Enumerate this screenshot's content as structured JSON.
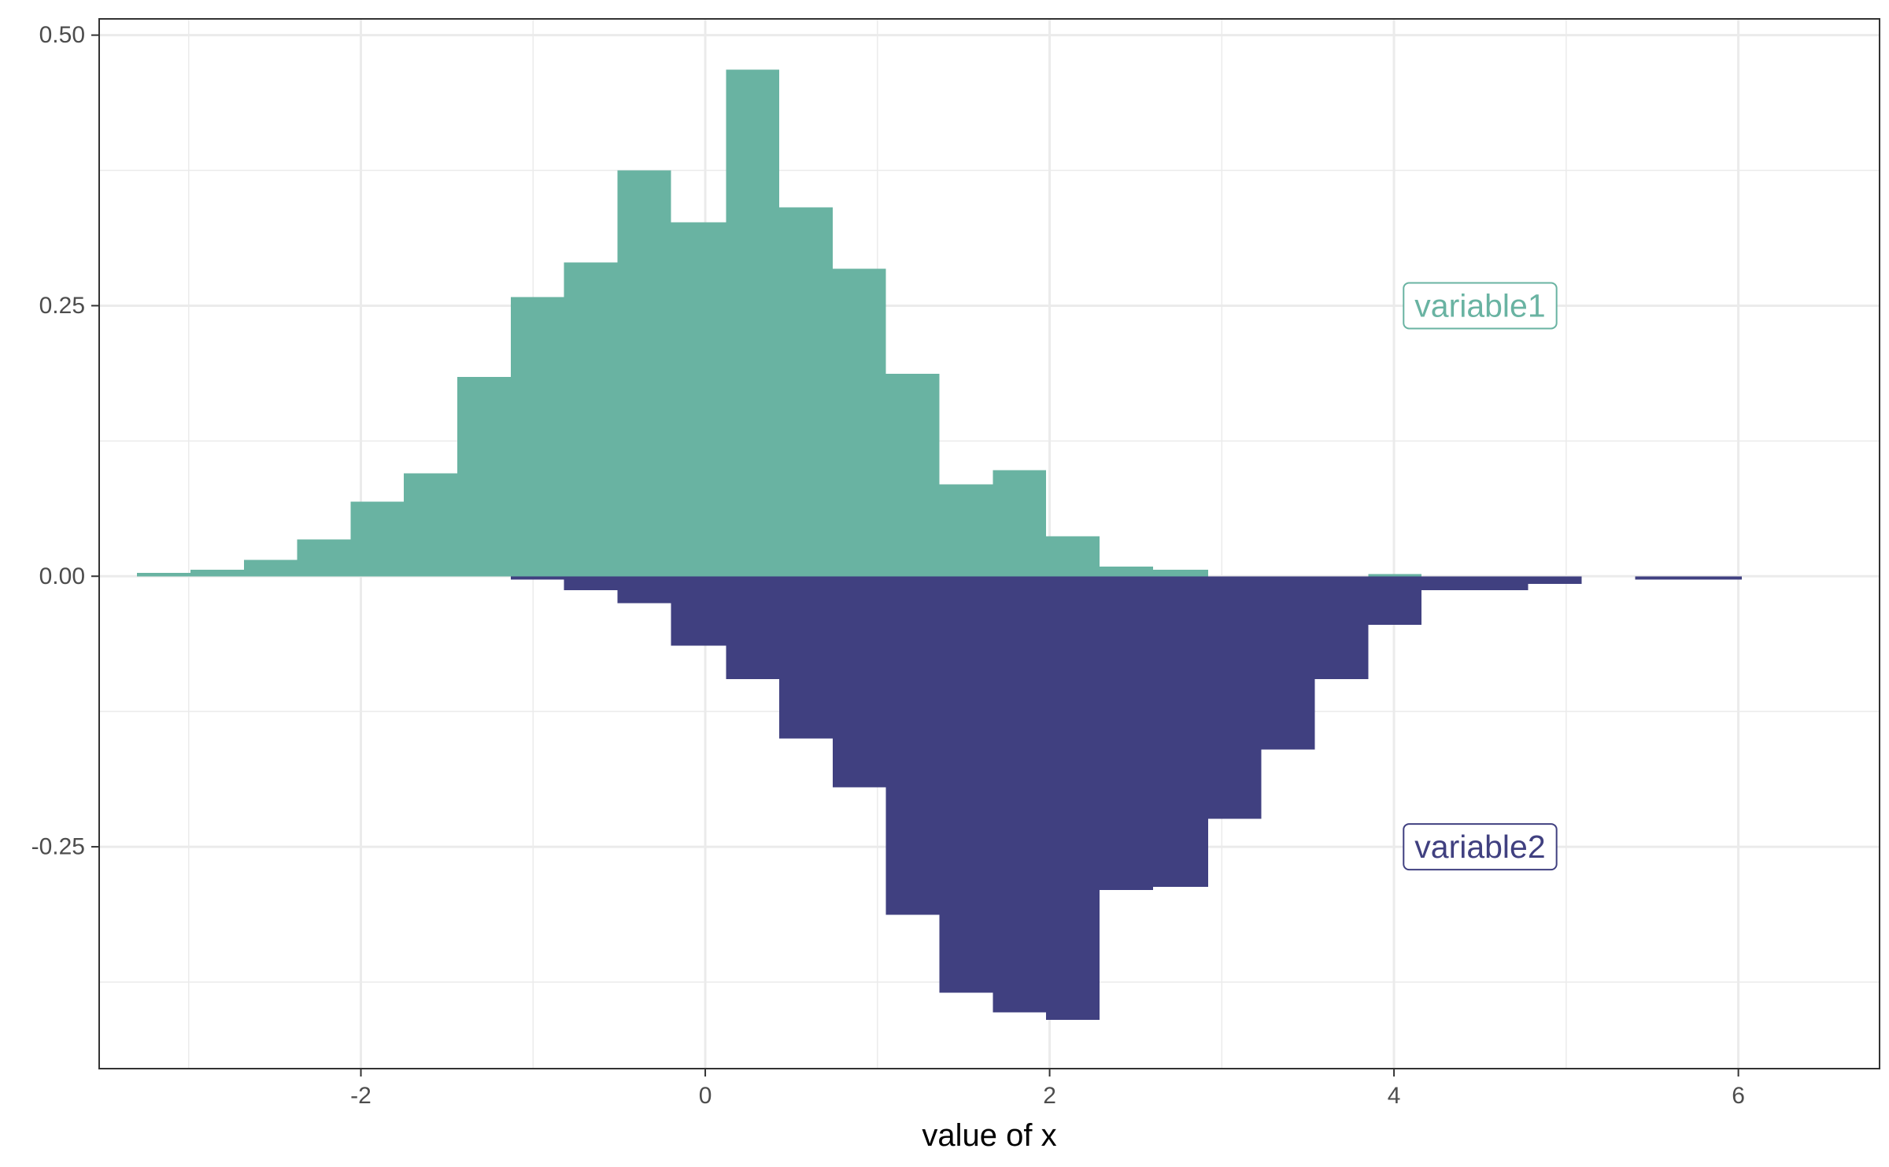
{
  "chart_data": {
    "type": "bar",
    "xlabel": "value of x",
    "ylabel": "",
    "xlim": [
      -3.52,
      6.82
    ],
    "ylim": [
      -0.455,
      0.515
    ],
    "x_ticks": [
      -2,
      0,
      2,
      4,
      6
    ],
    "x_tick_labels": [
      "-2",
      "0",
      "2",
      "4",
      "6"
    ],
    "y_ticks": [
      -0.25,
      0,
      0.25,
      0.5
    ],
    "y_tick_labels": [
      "-0.25",
      "0.00",
      "0.25",
      "0.50"
    ],
    "grid": true,
    "series": [
      {
        "color": "#69b3a2",
        "bins": [
          [
            -3.3,
            -2.99,
            0.003
          ],
          [
            -2.99,
            -2.68,
            0.006
          ],
          [
            -2.68,
            -2.37,
            0.015
          ],
          [
            -2.37,
            -2.06,
            0.034
          ],
          [
            -2.06,
            -1.75,
            0.069
          ],
          [
            -1.75,
            -1.44,
            0.095
          ],
          [
            -1.44,
            -1.13,
            0.184
          ],
          [
            -1.13,
            -0.82,
            0.258
          ],
          [
            -0.82,
            -0.51,
            0.29
          ],
          [
            -0.51,
            -0.2,
            0.375
          ],
          [
            -0.2,
            0.12,
            0.327
          ],
          [
            0.12,
            0.43,
            0.468
          ],
          [
            0.43,
            0.74,
            0.341
          ],
          [
            0.74,
            1.05,
            0.284
          ],
          [
            1.05,
            1.36,
            0.187
          ],
          [
            1.36,
            1.67,
            0.085
          ],
          [
            1.67,
            1.98,
            0.098
          ],
          [
            1.98,
            2.29,
            0.037
          ],
          [
            2.29,
            2.6,
            0.009
          ],
          [
            2.6,
            2.92,
            0.006
          ],
          [
            3.85,
            4.16,
            0.002
          ]
        ]
      },
      {
        "color": "#404080",
        "bins": [
          [
            -1.13,
            -0.82,
            -0.003
          ],
          [
            -0.82,
            -0.51,
            -0.013
          ],
          [
            -0.51,
            -0.2,
            -0.025
          ],
          [
            -0.2,
            0.12,
            -0.064
          ],
          [
            0.12,
            0.43,
            -0.095
          ],
          [
            0.43,
            0.74,
            -0.15
          ],
          [
            0.74,
            1.05,
            -0.195
          ],
          [
            1.05,
            1.36,
            -0.313
          ],
          [
            1.36,
            1.67,
            -0.385
          ],
          [
            1.67,
            1.98,
            -0.403
          ],
          [
            1.98,
            2.29,
            -0.41
          ],
          [
            2.29,
            2.6,
            -0.29
          ],
          [
            2.6,
            2.92,
            -0.287
          ],
          [
            2.92,
            3.23,
            -0.224
          ],
          [
            3.23,
            3.54,
            -0.16
          ],
          [
            3.54,
            3.85,
            -0.095
          ],
          [
            3.85,
            4.16,
            -0.045
          ],
          [
            4.16,
            4.47,
            -0.013
          ],
          [
            4.47,
            4.78,
            -0.013
          ],
          [
            4.78,
            5.09,
            -0.007
          ],
          [
            5.4,
            5.71,
            -0.003
          ],
          [
            5.71,
            6.02,
            -0.003
          ]
        ]
      }
    ],
    "annotations": [
      {
        "text": "variable1",
        "x": 4.5,
        "y": 0.25,
        "color": "#69b3a2"
      },
      {
        "text": "variable2",
        "x": 4.5,
        "y": -0.25,
        "color": "#404080"
      }
    ]
  }
}
